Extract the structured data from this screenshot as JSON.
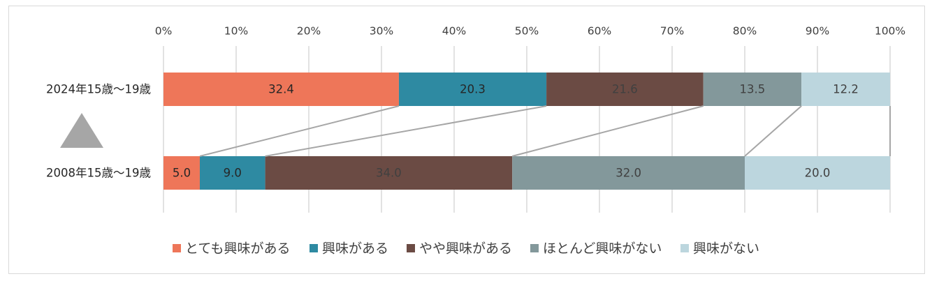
{
  "chart_data": {
    "type": "bar",
    "orientation": "horizontal",
    "stacked": true,
    "categories": [
      "2024年15歳〜19歳",
      "2008年15歳〜19歳"
    ],
    "series": [
      {
        "name": "とても興味がある",
        "values": [
          32.4,
          5.0
        ],
        "color": "#EE7659"
      },
      {
        "name": "興味がある",
        "values": [
          20.3,
          9.0
        ],
        "color": "#2E8AA2"
      },
      {
        "name": "やや興味がある",
        "values": [
          21.6,
          34.0
        ],
        "color": "#6B4B44"
      },
      {
        "name": "ほとんど興味がない",
        "values": [
          13.5,
          32.0
        ],
        "color": "#83989B"
      },
      {
        "name": "興味がない",
        "values": [
          12.2,
          20.0
        ],
        "color": "#BCD6DE"
      }
    ],
    "xlim": [
      0,
      100
    ],
    "x_ticks": [
      "0%",
      "10%",
      "20%",
      "30%",
      "40%",
      "50%",
      "60%",
      "70%",
      "80%",
      "90%",
      "100%"
    ],
    "grid": true,
    "legend_position": "bottom",
    "connector_lines": true,
    "triangle_marker_color": "#A6A6A6",
    "label_colors": [
      "#262626",
      "#262626",
      "#404040",
      "#404040",
      "#404040"
    ]
  }
}
